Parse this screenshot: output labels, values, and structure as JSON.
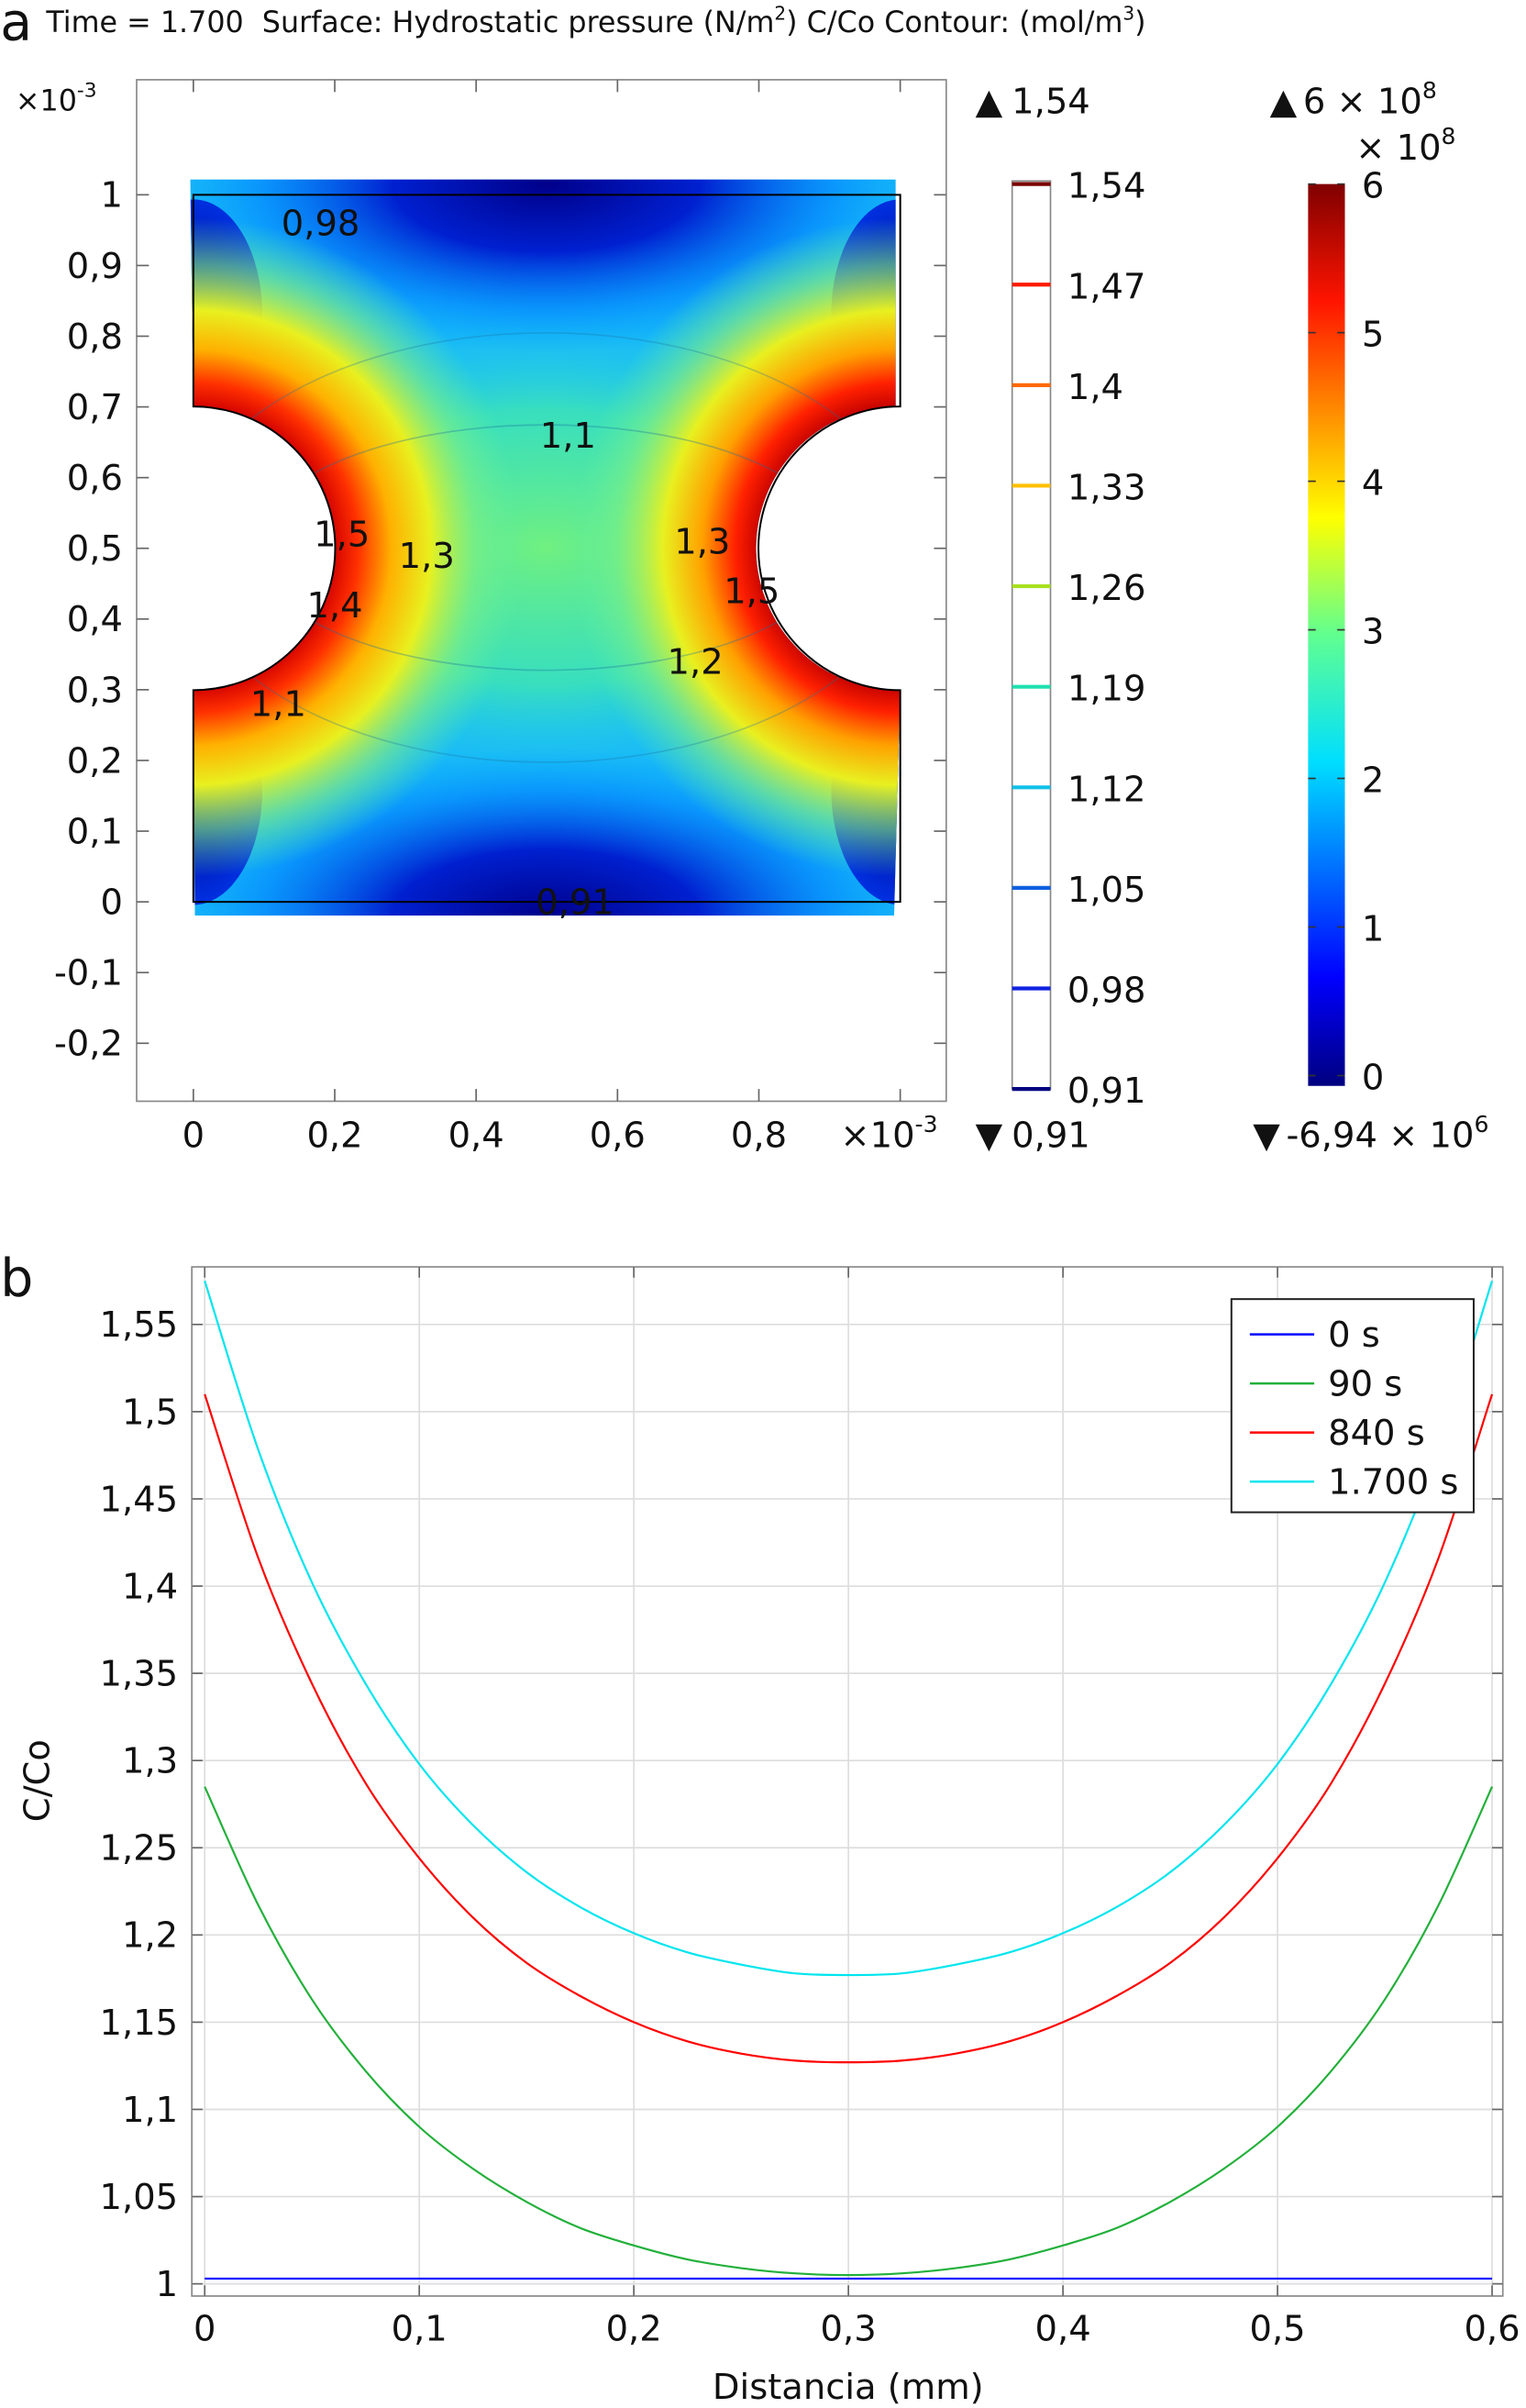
{
  "panel_a": {
    "label": "a",
    "title": {
      "time": "Time = 1.700",
      "surface": "Surface: Hydrostatic pressure (N/m",
      "surface_sup": "2",
      "contour": ") C/Co Contour:  (mol/m",
      "contour_sup": "3",
      "end": ")"
    },
    "axis_multiplier": {
      "base": "×10",
      "exp": "-3"
    },
    "x_ticks": [
      "0",
      "0,2",
      "0,4",
      "0,6",
      "0,8"
    ],
    "x_tick_values": [
      0,
      0.2,
      0.4,
      0.6,
      0.8
    ],
    "y_ticks": [
      "1",
      "0,9",
      "0,8",
      "0,7",
      "0,6",
      "0,5",
      "0,4",
      "0,3",
      "0,2",
      "0,1",
      "0",
      "-0,1",
      "-0,2"
    ],
    "y_tick_values": [
      1,
      0.9,
      0.8,
      0.7,
      0.6,
      0.5,
      0.4,
      0.3,
      0.2,
      0.1,
      0,
      -0.1,
      -0.2
    ],
    "contour_labels": [
      {
        "text": "0,98",
        "x": 0.18,
        "y": 0.96
      },
      {
        "text": "1,1",
        "x": 0.53,
        "y": 0.66
      },
      {
        "text": "1,5",
        "x": 0.21,
        "y": 0.52
      },
      {
        "text": "1,3",
        "x": 0.33,
        "y": 0.49
      },
      {
        "text": "1,4",
        "x": 0.2,
        "y": 0.42
      },
      {
        "text": "1,1",
        "x": 0.12,
        "y": 0.28
      },
      {
        "text": "1,3",
        "x": 0.72,
        "y": 0.51
      },
      {
        "text": "1,5",
        "x": 0.79,
        "y": 0.44
      },
      {
        "text": "1,2",
        "x": 0.71,
        "y": 0.34
      },
      {
        "text": "0,91",
        "x": 0.54,
        "y": 0.0
      }
    ],
    "contour_legend": {
      "max": "1,54",
      "min": "0,91",
      "levels": [
        {
          "label": "1,54",
          "color": "#7a0000"
        },
        {
          "label": "1,47",
          "color": "#ff1a00"
        },
        {
          "label": "1,4",
          "color": "#ff6a00"
        },
        {
          "label": "1,33",
          "color": "#ffc000"
        },
        {
          "label": "1,26",
          "color": "#a8e020"
        },
        {
          "label": "1,19",
          "color": "#20e0b0"
        },
        {
          "label": "1,12",
          "color": "#10c0e8"
        },
        {
          "label": "1,05",
          "color": "#1060e0"
        },
        {
          "label": "0,98",
          "color": "#1020e0"
        },
        {
          "label": "0,91",
          "color": "#000080"
        }
      ]
    },
    "colorbar": {
      "max": "6 × 10",
      "max_exp": "8",
      "multiplier": "× 10",
      "multiplier_exp": "8",
      "ticks": [
        "6",
        "5",
        "4",
        "3",
        "2",
        "1",
        "0"
      ],
      "min": "-6,94 × 10",
      "min_exp": "6"
    }
  },
  "chart_data": {
    "type": "line",
    "panel_label": "b",
    "title": "",
    "xlabel": "Distancia (mm)",
    "ylabel": "C/Co",
    "xlim": [
      -0.006,
      0.605
    ],
    "ylim": [
      0.993,
      1.583
    ],
    "grid": true,
    "legend_position": "top-right",
    "x_ticks": [
      "0",
      "0,1",
      "0,2",
      "0,3",
      "0,4",
      "0,5",
      "0,6"
    ],
    "x_tick_values": [
      0,
      0.1,
      0.2,
      0.3,
      0.4,
      0.5,
      0.6
    ],
    "y_ticks": [
      "1",
      "1,05",
      "1,1",
      "1,15",
      "1,2",
      "1,25",
      "1,3",
      "1,35",
      "1,4",
      "1,45",
      "1,5",
      "1,55"
    ],
    "y_tick_values": [
      1,
      1.05,
      1.1,
      1.15,
      1.2,
      1.25,
      1.3,
      1.35,
      1.4,
      1.45,
      1.5,
      1.55
    ],
    "x": [
      0,
      0.025,
      0.05,
      0.075,
      0.1,
      0.125,
      0.15,
      0.175,
      0.2,
      0.225,
      0.25,
      0.275,
      0.3,
      0.325,
      0.35,
      0.375,
      0.4,
      0.425,
      0.45,
      0.475,
      0.5,
      0.525,
      0.55,
      0.575,
      0.6
    ],
    "series": [
      {
        "name": "0 s",
        "color": "#0000ff",
        "values": [
          1.003,
          1.003,
          1.003,
          1.003,
          1.003,
          1.003,
          1.003,
          1.003,
          1.003,
          1.003,
          1.003,
          1.003,
          1.003,
          1.003,
          1.003,
          1.003,
          1.003,
          1.003,
          1.003,
          1.003,
          1.003,
          1.003,
          1.003,
          1.003,
          1.003
        ]
      },
      {
        "name": "90 s",
        "color": "#22b03a",
        "values": [
          1.285,
          1.217,
          1.163,
          1.122,
          1.09,
          1.066,
          1.047,
          1.032,
          1.022,
          1.014,
          1.009,
          1.006,
          1.005,
          1.006,
          1.009,
          1.014,
          1.022,
          1.032,
          1.047,
          1.066,
          1.09,
          1.122,
          1.163,
          1.217,
          1.285
        ]
      },
      {
        "name": "840 s",
        "color": "#ff0000",
        "values": [
          1.51,
          1.416,
          1.344,
          1.287,
          1.244,
          1.21,
          1.184,
          1.165,
          1.15,
          1.139,
          1.132,
          1.128,
          1.127,
          1.128,
          1.132,
          1.139,
          1.15,
          1.165,
          1.184,
          1.21,
          1.244,
          1.287,
          1.344,
          1.416,
          1.51
        ]
      },
      {
        "name": "1.700 s",
        "color": "#00e5ee",
        "values": [
          1.575,
          1.478,
          1.402,
          1.344,
          1.298,
          1.263,
          1.236,
          1.216,
          1.201,
          1.19,
          1.183,
          1.178,
          1.177,
          1.178,
          1.183,
          1.19,
          1.201,
          1.216,
          1.236,
          1.263,
          1.298,
          1.344,
          1.402,
          1.478,
          1.575
        ]
      }
    ]
  }
}
